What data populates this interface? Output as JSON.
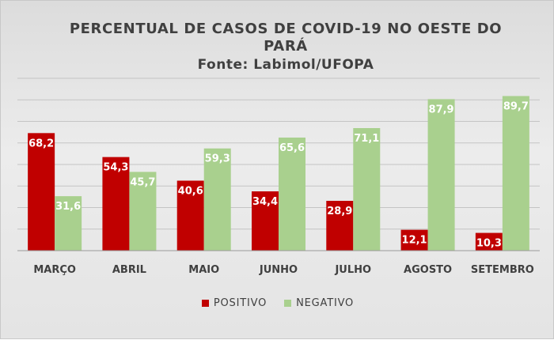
{
  "chart_data": {
    "type": "bar",
    "title_line1": "PERCENTUAL DE CASOS DE COVID-19 NO OESTE DO",
    "title_line2": "PARÁ",
    "subtitle": "Fonte: Labimol/UFOPA",
    "categories": [
      "MARÇO",
      "ABRIL",
      "MAIO",
      "JUNHO",
      "JULHO",
      "AGOSTO",
      "SETEMBRO"
    ],
    "series": [
      {
        "name": "POSITIVO",
        "values": [
          68.2,
          54.3,
          40.6,
          34.4,
          28.9,
          12.1,
          10.3
        ],
        "color": "#c00000"
      },
      {
        "name": "NEGATIVO",
        "values": [
          31.6,
          45.7,
          59.3,
          65.6,
          71.1,
          87.9,
          89.7
        ],
        "color": "#a9d08e"
      }
    ],
    "ylim": [
      0,
      100
    ],
    "grid": true,
    "legend_position": "bottom"
  }
}
